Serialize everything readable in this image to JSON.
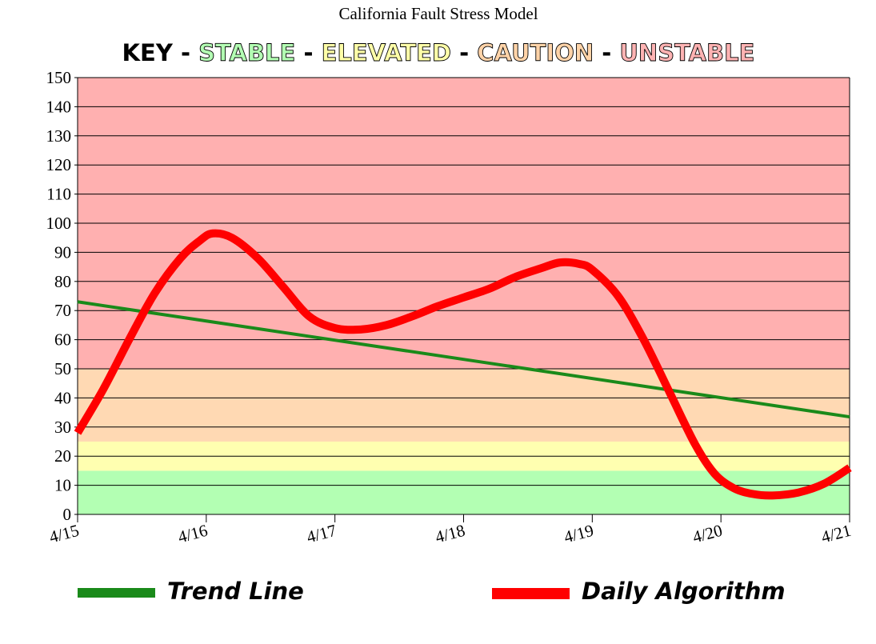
{
  "chart_data": {
    "type": "line",
    "title": "California Fault Stress Model",
    "key": {
      "prefix": "KEY",
      "separator": "-",
      "zones": [
        {
          "name": "STABLE",
          "from": 0,
          "to": 15,
          "color": "#b3ffb3",
          "text_color": "#b3ffb3"
        },
        {
          "name": "ELEVATED",
          "from": 15,
          "to": 25,
          "color": "#ffffb0",
          "text_color": "#ffffa8"
        },
        {
          "name": "CAUTION",
          "from": 25,
          "to": 50,
          "color": "#ffd9b3",
          "text_color": "#ffd3a8"
        },
        {
          "name": "UNSTABLE",
          "from": 50,
          "to": 150,
          "color": "#ffb0b0",
          "text_color": "#ffb3b3"
        }
      ]
    },
    "categories": [
      "4/15",
      "4/16",
      "4/17",
      "4/18",
      "4/19",
      "4/20",
      "4/21"
    ],
    "ylim": [
      0,
      150
    ],
    "yticks": [
      0,
      10,
      20,
      30,
      40,
      50,
      60,
      70,
      80,
      90,
      100,
      110,
      120,
      130,
      140,
      150
    ],
    "grid": true,
    "series": [
      {
        "name": "Trend Line",
        "color": "#1a8a1a",
        "points": [
          [
            0,
            73
          ],
          [
            6,
            33.5
          ]
        ]
      },
      {
        "name": "Daily Algorithm",
        "color": "#ff0000",
        "points": [
          [
            0,
            28
          ],
          [
            0.2,
            43
          ],
          [
            0.4,
            60
          ],
          [
            0.6,
            76
          ],
          [
            0.8,
            88
          ],
          [
            0.95,
            94
          ],
          [
            1.05,
            96.5
          ],
          [
            1.2,
            95
          ],
          [
            1.4,
            88
          ],
          [
            1.6,
            78
          ],
          [
            1.8,
            68
          ],
          [
            2.0,
            64
          ],
          [
            2.2,
            63.5
          ],
          [
            2.4,
            65
          ],
          [
            2.6,
            68
          ],
          [
            2.8,
            71.5
          ],
          [
            3.0,
            74.5
          ],
          [
            3.2,
            77.5
          ],
          [
            3.4,
            81.5
          ],
          [
            3.6,
            84.5
          ],
          [
            3.75,
            86.5
          ],
          [
            3.9,
            86
          ],
          [
            4.0,
            84
          ],
          [
            4.2,
            75
          ],
          [
            4.4,
            60
          ],
          [
            4.6,
            42
          ],
          [
            4.8,
            24
          ],
          [
            4.95,
            14
          ],
          [
            5.1,
            9
          ],
          [
            5.25,
            7
          ],
          [
            5.4,
            6.5
          ],
          [
            5.6,
            7.5
          ],
          [
            5.8,
            10.5
          ],
          [
            6.0,
            16
          ]
        ]
      }
    ],
    "legend": [
      {
        "label": "Trend Line",
        "color": "#1a8a1a"
      },
      {
        "label": "Daily Algorithm",
        "color": "#ff0000"
      }
    ]
  }
}
